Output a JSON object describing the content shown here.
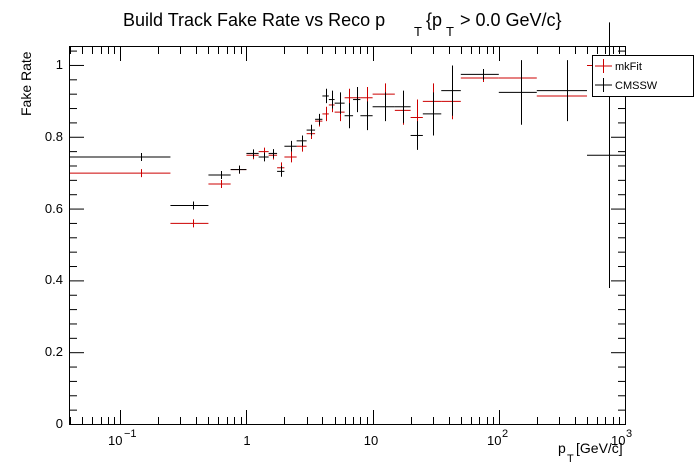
{
  "chart_data": {
    "type": "scatter",
    "title": "Build Track Fake Rate vs Reco p",
    "title_parts": {
      "sub_T_1": "T",
      "open": "{p",
      "sub_T_2": "T",
      "rest": "> 0.0 GeV/c}"
    },
    "ylabel": "Fake Rate",
    "xlabel": "p",
    "xlabel_parts": {
      "sub": "T",
      "unit": "[GeV/c]"
    },
    "xscale": "log",
    "xlim": [
      0.04,
      1000
    ],
    "ylim": [
      0,
      1.05
    ],
    "y_ticks": [
      "0",
      "0.2",
      "0.4",
      "0.6",
      "0.8",
      "1"
    ],
    "x_tick_labels": {
      "m1_base": "10",
      "m1_exp": "−1",
      "t0": "1",
      "t1": "10",
      "t2_base": "10",
      "t2_exp": "2",
      "t3_base": "10",
      "t3_exp": "3"
    },
    "legend": {
      "position": "top-right",
      "entries": [
        "mkFit",
        "CMSSW"
      ]
    },
    "grid": false,
    "series": [
      {
        "name": "mkFit",
        "color": "#cc0000",
        "points": [
          {
            "x": 0.145,
            "xlo": 0.04,
            "xhi": 0.25,
            "y": 0.7,
            "yerr": 0.0
          },
          {
            "x": 0.375,
            "xlo": 0.25,
            "xhi": 0.5,
            "y": 0.56,
            "yerr": 0.0
          },
          {
            "x": 0.625,
            "xlo": 0.5,
            "xhi": 0.75,
            "y": 0.67,
            "yerr": 0.005
          },
          {
            "x": 0.875,
            "xlo": 0.75,
            "xhi": 1.0,
            "y": 0.71,
            "yerr": 0.005
          },
          {
            "x": 1.125,
            "xlo": 1.0,
            "xhi": 1.25,
            "y": 0.75,
            "yerr": 0.008
          },
          {
            "x": 1.375,
            "xlo": 1.25,
            "xhi": 1.5,
            "y": 0.76,
            "yerr": 0.01
          },
          {
            "x": 1.625,
            "xlo": 1.5,
            "xhi": 1.75,
            "y": 0.75,
            "yerr": 0.012
          },
          {
            "x": 1.875,
            "xlo": 1.75,
            "xhi": 2.0,
            "y": 0.715,
            "yerr": 0.015
          },
          {
            "x": 2.25,
            "xlo": 2.0,
            "xhi": 2.5,
            "y": 0.745,
            "yerr": 0.015
          },
          {
            "x": 2.75,
            "xlo": 2.5,
            "xhi": 3.0,
            "y": 0.775,
            "yerr": 0.015
          },
          {
            "x": 3.25,
            "xlo": 3.0,
            "xhi": 3.5,
            "y": 0.81,
            "yerr": 0.015
          },
          {
            "x": 3.75,
            "xlo": 3.5,
            "xhi": 4.0,
            "y": 0.845,
            "yerr": 0.015
          },
          {
            "x": 4.25,
            "xlo": 4.0,
            "xhi": 4.5,
            "y": 0.865,
            "yerr": 0.02
          },
          {
            "x": 4.75,
            "xlo": 4.5,
            "xhi": 5.0,
            "y": 0.89,
            "yerr": 0.02
          },
          {
            "x": 5.5,
            "xlo": 5.0,
            "xhi": 6.0,
            "y": 0.87,
            "yerr": 0.025
          },
          {
            "x": 6.5,
            "xlo": 6.0,
            "xhi": 7.0,
            "y": 0.91,
            "yerr": 0.025
          },
          {
            "x": 7.5,
            "xlo": 7.0,
            "xhi": 8.0,
            "y": 0.91,
            "yerr": 0.03
          },
          {
            "x": 9.0,
            "xlo": 8.0,
            "xhi": 10.0,
            "y": 0.91,
            "yerr": 0.03
          },
          {
            "x": 12.5,
            "xlo": 10.0,
            "xhi": 15.0,
            "y": 0.92,
            "yerr": 0.03
          },
          {
            "x": 17.5,
            "xlo": 15.0,
            "xhi": 20.0,
            "y": 0.875,
            "yerr": 0.04
          },
          {
            "x": 22.5,
            "xlo": 20.0,
            "xhi": 25.0,
            "y": 0.855,
            "yerr": 0.05
          },
          {
            "x": 30.0,
            "xlo": 25.0,
            "xhi": 35.0,
            "y": 0.9,
            "yerr": 0.05
          },
          {
            "x": 42.5,
            "xlo": 35.0,
            "xhi": 50.0,
            "y": 0.9,
            "yerr": 0.05
          },
          {
            "x": 75.0,
            "xlo": 50.0,
            "xhi": 100.0,
            "y": 0.965,
            "yerr": 0.01
          },
          {
            "x": 150.0,
            "xlo": 100.0,
            "xhi": 200.0,
            "y": 0.965,
            "yerr": 0.015
          },
          {
            "x": 350.0,
            "xlo": 200.0,
            "xhi": 500.0,
            "y": 0.915,
            "yerr": 0.0
          },
          {
            "x": 750.0,
            "xlo": 500.0,
            "xhi": 1000.0,
            "y": 1.0,
            "yerr": 0.0
          }
        ]
      },
      {
        "name": "CMSSW",
        "color": "#000000",
        "points": [
          {
            "x": 0.145,
            "xlo": 0.04,
            "xhi": 0.25,
            "y": 0.745,
            "yerr": 0.0
          },
          {
            "x": 0.375,
            "xlo": 0.25,
            "xhi": 0.5,
            "y": 0.61,
            "yerr": 0.0
          },
          {
            "x": 0.625,
            "xlo": 0.5,
            "xhi": 0.75,
            "y": 0.695,
            "yerr": 0.006
          },
          {
            "x": 0.875,
            "xlo": 0.75,
            "xhi": 1.0,
            "y": 0.71,
            "yerr": 0.006
          },
          {
            "x": 1.125,
            "xlo": 1.0,
            "xhi": 1.25,
            "y": 0.755,
            "yerr": 0.008
          },
          {
            "x": 1.375,
            "xlo": 1.25,
            "xhi": 1.5,
            "y": 0.745,
            "yerr": 0.012
          },
          {
            "x": 1.625,
            "xlo": 1.5,
            "xhi": 1.75,
            "y": 0.755,
            "yerr": 0.012
          },
          {
            "x": 1.875,
            "xlo": 1.75,
            "xhi": 2.0,
            "y": 0.705,
            "yerr": 0.015
          },
          {
            "x": 2.25,
            "xlo": 2.0,
            "xhi": 2.5,
            "y": 0.775,
            "yerr": 0.015
          },
          {
            "x": 2.75,
            "xlo": 2.5,
            "xhi": 3.0,
            "y": 0.79,
            "yerr": 0.015
          },
          {
            "x": 3.25,
            "xlo": 3.0,
            "xhi": 3.5,
            "y": 0.82,
            "yerr": 0.015
          },
          {
            "x": 3.75,
            "xlo": 3.5,
            "xhi": 4.0,
            "y": 0.85,
            "yerr": 0.015
          },
          {
            "x": 4.25,
            "xlo": 4.0,
            "xhi": 4.5,
            "y": 0.915,
            "yerr": 0.02
          },
          {
            "x": 4.75,
            "xlo": 4.5,
            "xhi": 5.0,
            "y": 0.905,
            "yerr": 0.025
          },
          {
            "x": 5.5,
            "xlo": 5.0,
            "xhi": 6.0,
            "y": 0.895,
            "yerr": 0.03
          },
          {
            "x": 6.5,
            "xlo": 6.0,
            "xhi": 7.0,
            "y": 0.86,
            "yerr": 0.035
          },
          {
            "x": 7.5,
            "xlo": 7.0,
            "xhi": 8.0,
            "y": 0.905,
            "yerr": 0.035
          },
          {
            "x": 9.0,
            "xlo": 8.0,
            "xhi": 10.0,
            "y": 0.86,
            "yerr": 0.04
          },
          {
            "x": 12.5,
            "xlo": 10.0,
            "xhi": 15.0,
            "y": 0.885,
            "yerr": 0.04
          },
          {
            "x": 17.5,
            "xlo": 15.0,
            "xhi": 20.0,
            "y": 0.885,
            "yerr": 0.045
          },
          {
            "x": 22.5,
            "xlo": 20.0,
            "xhi": 25.0,
            "y": 0.805,
            "yerr": 0.04
          },
          {
            "x": 30.0,
            "xlo": 25.0,
            "xhi": 35.0,
            "y": 0.865,
            "yerr": 0.06
          },
          {
            "x": 42.5,
            "xlo": 35.0,
            "xhi": 50.0,
            "y": 0.93,
            "yerr": 0.07
          },
          {
            "x": 75.0,
            "xlo": 50.0,
            "xhi": 100.0,
            "y": 0.975,
            "yerr": 0.015
          },
          {
            "x": 150.0,
            "xlo": 100.0,
            "xhi": 200.0,
            "y": 0.925,
            "yerr": 0.09
          },
          {
            "x": 350.0,
            "xlo": 200.0,
            "xhi": 500.0,
            "y": 0.93,
            "yerr": 0.085
          },
          {
            "x": 750.0,
            "xlo": 500.0,
            "xhi": 1000.0,
            "y": 0.75,
            "yerr": 0.37
          }
        ]
      }
    ]
  }
}
